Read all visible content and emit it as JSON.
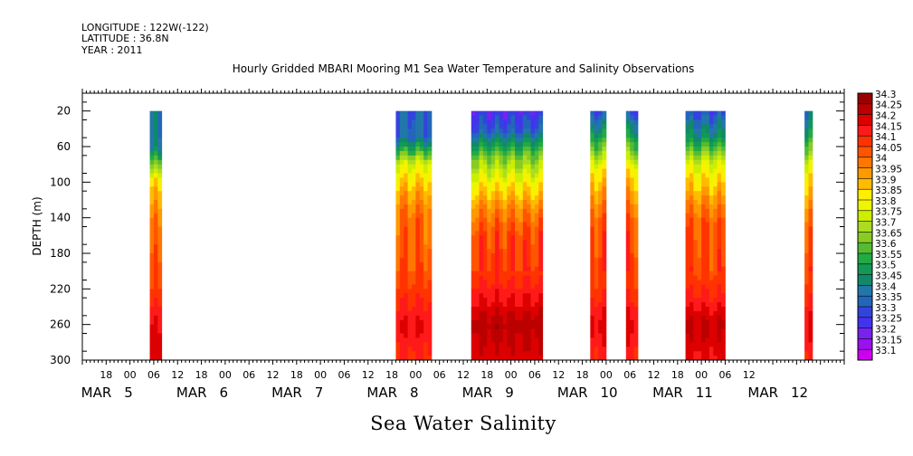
{
  "header": {
    "longitude": "LONGITUDE : 122W(-122)",
    "latitude": "LATITUDE : 36.8N",
    "year": "YEAR : 2011"
  },
  "chart_data": {
    "type": "heatmap",
    "title": "Hourly Gridded MBARI Mooring M1 Sea Water Temperature and Salinity Observations",
    "ylabel": "DEPTH (m)",
    "xlabel": "Sea Water Salinity",
    "y_ticks": [
      20,
      60,
      100,
      140,
      180,
      220,
      260,
      300
    ],
    "y_range": [
      300,
      0
    ],
    "y_inverted": true,
    "x_start_hours_label": "MAR 4 12:00",
    "x_hour_ticks": [
      "18",
      "00",
      "06",
      "12",
      "18",
      "00",
      "06",
      "12",
      "18",
      "00",
      "06",
      "12",
      "18",
      "00",
      "06",
      "12",
      "18",
      "00",
      "06",
      "12",
      "18",
      "00",
      "06",
      "12",
      "18",
      "00",
      "06",
      "12"
    ],
    "x_date_labels": [
      "MAR 5",
      "MAR 6",
      "MAR 7",
      "MAR 8",
      "MAR 9",
      "MAR 10",
      "MAR 11",
      "MAR 12"
    ],
    "x_date_label_parts": [
      [
        "MAR",
        "5"
      ],
      [
        "MAR",
        "6"
      ],
      [
        "MAR",
        "7"
      ],
      [
        "MAR",
        "8"
      ],
      [
        "MAR",
        "9"
      ],
      [
        "MAR",
        "10"
      ],
      [
        "MAR",
        "11"
      ],
      [
        "MAR",
        "12"
      ]
    ],
    "colorbar_levels": [
      "34.3",
      "34.25",
      "34.2",
      "34.15",
      "34.1",
      "34.05",
      "34",
      "33.95",
      "33.9",
      "33.85",
      "33.8",
      "33.75",
      "33.7",
      "33.65",
      "33.6",
      "33.55",
      "33.5",
      "33.45",
      "33.4",
      "33.35",
      "33.3",
      "33.25",
      "33.2",
      "33.15",
      "33.1"
    ],
    "colorbar_colors": [
      "#990000",
      "#bb0000",
      "#dd0000",
      "#ff1a1a",
      "#ff3300",
      "#ff5500",
      "#ff7700",
      "#ff9900",
      "#ffbb00",
      "#ffee00",
      "#eef500",
      "#ccee00",
      "#aadd22",
      "#88cc22",
      "#55bb33",
      "#22aa44",
      "#119955",
      "#11886b",
      "#2277aa",
      "#2266bb",
      "#3344dd",
      "#4433ee",
      "#7722ee",
      "#9911ee",
      "#cc00ee"
    ],
    "observation_segments": [
      {
        "start": "MAR 5 05:00",
        "end": "MAR 5 08:00",
        "top_depth": 20,
        "profile": [
          {
            "depth": 20,
            "value": 33.4
          },
          {
            "depth": 60,
            "value": 33.42
          },
          {
            "depth": 100,
            "value": 33.88
          },
          {
            "depth": 140,
            "value": 34.0
          },
          {
            "depth": 180,
            "value": 34.05
          },
          {
            "depth": 220,
            "value": 34.1
          },
          {
            "depth": 260,
            "value": 34.2
          },
          {
            "depth": 300,
            "value": 34.22
          }
        ]
      },
      {
        "start": "MAR 7 19:00",
        "end": "MAR 8 04:00",
        "top_depth": 20,
        "profile": [
          {
            "depth": 20,
            "value": 33.38
          },
          {
            "depth": 50,
            "value": 33.4
          },
          {
            "depth": 80,
            "value": 33.8
          },
          {
            "depth": 110,
            "value": 33.95
          },
          {
            "depth": 140,
            "value": 34.05
          },
          {
            "depth": 180,
            "value": 34.06
          },
          {
            "depth": 220,
            "value": 34.12
          },
          {
            "depth": 260,
            "value": 34.2
          },
          {
            "depth": 300,
            "value": 34.15
          }
        ]
      },
      {
        "start": "MAR 8 14:00",
        "end": "MAR 9 08:00",
        "top_depth": 20,
        "profile": [
          {
            "depth": 20,
            "value": 33.28
          },
          {
            "depth": 40,
            "value": 33.35
          },
          {
            "depth": 70,
            "value": 33.65
          },
          {
            "depth": 100,
            "value": 33.85
          },
          {
            "depth": 130,
            "value": 34.0
          },
          {
            "depth": 160,
            "value": 34.1
          },
          {
            "depth": 200,
            "value": 34.12
          },
          {
            "depth": 240,
            "value": 34.22
          },
          {
            "depth": 260,
            "value": 34.28
          },
          {
            "depth": 300,
            "value": 34.22
          }
        ]
      },
      {
        "start": "MAR 9 20:00",
        "end": "MAR 10 00:00",
        "top_depth": 20,
        "profile": [
          {
            "depth": 20,
            "value": 33.33
          },
          {
            "depth": 50,
            "value": 33.55
          },
          {
            "depth": 90,
            "value": 33.88
          },
          {
            "depth": 130,
            "value": 34.03
          },
          {
            "depth": 160,
            "value": 34.1
          },
          {
            "depth": 220,
            "value": 34.12
          },
          {
            "depth": 260,
            "value": 34.22
          },
          {
            "depth": 300,
            "value": 34.15
          }
        ]
      },
      {
        "start": "MAR 10 05:00",
        "end": "MAR 10 08:00",
        "top_depth": 20,
        "profile": [
          {
            "depth": 20,
            "value": 33.33
          },
          {
            "depth": 50,
            "value": 33.55
          },
          {
            "depth": 90,
            "value": 33.88
          },
          {
            "depth": 130,
            "value": 34.03
          },
          {
            "depth": 160,
            "value": 34.1
          },
          {
            "depth": 220,
            "value": 34.12
          },
          {
            "depth": 260,
            "value": 34.22
          },
          {
            "depth": 300,
            "value": 34.15
          }
        ]
      },
      {
        "start": "MAR 10 20:00",
        "end": "MAR 11 06:00",
        "top_depth": 20,
        "profile": [
          {
            "depth": 20,
            "value": 33.33
          },
          {
            "depth": 50,
            "value": 33.5
          },
          {
            "depth": 80,
            "value": 33.8
          },
          {
            "depth": 120,
            "value": 33.98
          },
          {
            "depth": 150,
            "value": 34.08
          },
          {
            "depth": 200,
            "value": 34.1
          },
          {
            "depth": 230,
            "value": 34.16
          },
          {
            "depth": 260,
            "value": 34.26
          },
          {
            "depth": 300,
            "value": 34.2
          }
        ]
      },
      {
        "start": "MAR 12 02:00",
        "end": "MAR 12 04:00",
        "top_depth": 20,
        "profile": [
          {
            "depth": 20,
            "value": 33.4
          },
          {
            "depth": 50,
            "value": 33.55
          },
          {
            "depth": 90,
            "value": 33.85
          },
          {
            "depth": 130,
            "value": 34.0
          },
          {
            "depth": 160,
            "value": 34.08
          },
          {
            "depth": 220,
            "value": 34.12
          },
          {
            "depth": 260,
            "value": 34.22
          },
          {
            "depth": 300,
            "value": 34.15
          }
        ]
      }
    ]
  }
}
